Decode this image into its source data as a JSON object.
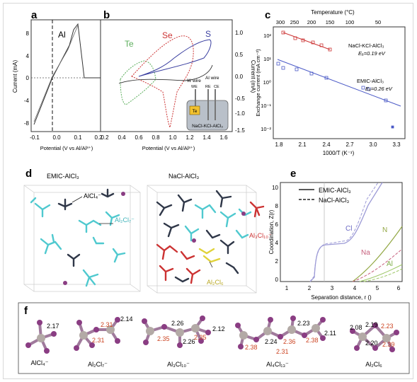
{
  "panels": {
    "a": {
      "letter": "a",
      "ylabel": "Current (mA)",
      "xlabel": "Potential (V vs Al/Al³⁺)",
      "element": "Al",
      "xticks": [
        "-0.1",
        "0.0",
        "0.1",
        "0.2"
      ],
      "yticks": [
        "8",
        "4",
        "0",
        "-4",
        "-8"
      ]
    },
    "b": {
      "letter": "b",
      "ylabel": "Current (mA)",
      "xlabel": "Potential (V vs Al/Al³⁺)",
      "elements": [
        "Te",
        "Se",
        "S"
      ],
      "xticks": [
        "0.2",
        "0.4",
        "0.6",
        "0.8",
        "1.0",
        "1.2",
        "1.4",
        "1.6"
      ],
      "yticks": [
        "1.0",
        "0.5",
        "0.0",
        "-0.5",
        "-1.0",
        "-1.5"
      ],
      "inset": {
        "w_wire": "W wire",
        "we": "WE",
        "al_wire": "Al wire",
        "re": "RE",
        "ce": "CE",
        "label": "NaCl-KCl-AlCl₃",
        "cell": "Te"
      }
    },
    "c": {
      "letter": "c",
      "top_label": "Temperature (°C)",
      "top_ticks": [
        "300",
        "250",
        "200",
        "150",
        "100",
        "50"
      ],
      "ylabel": "Exchange current (mA cm⁻²)",
      "xlabel": "1000/T (K⁻¹)",
      "xticks": [
        "1.8",
        "2.1",
        "2.4",
        "2.7",
        "3.0",
        "3.3"
      ],
      "yticks": [
        "10²",
        "10¹",
        "10⁰",
        "10⁻¹",
        "10⁻²"
      ],
      "series1_label": "NaCl-KCl-AlCl₃",
      "series1_ea": "Eₐ=0.19 eV",
      "series2_label": "EMIC-AlCl₃",
      "series2_ea": "Eₐ=0.26 eV"
    },
    "d": {
      "letter": "d",
      "left_label": "EMIC-AlCl₃",
      "right_label": "NaCl-AlCl₃",
      "alcl4": "AlCl₄⁻",
      "al2cl7": "Al₂Cl₇⁻",
      "al3cl10": "Al₃Cl₁₀⁻",
      "al2cl6": "Al₂Cl₆"
    },
    "e": {
      "letter": "e",
      "legend1": "EMIC-AlCl₃",
      "legend2": "NaCl-AlCl₃",
      "ylabel": "Coordination, Z(r)",
      "xlabel": "Separation distance, r ()",
      "xticks": [
        "1",
        "2",
        "3",
        "4",
        "5",
        "6"
      ],
      "yticks": [
        "10",
        "8",
        "6",
        "4",
        "2",
        "0"
      ],
      "cl": "Cl",
      "n": "N",
      "na": "Na",
      "al": "Al"
    },
    "f": {
      "letter": "f",
      "structures": [
        {
          "name": "AlCl₄⁻",
          "labels": [
            "2.17"
          ]
        },
        {
          "name": "Al₂Cl₇⁻",
          "labels": [
            "2.31",
            "2.14",
            "2.31"
          ]
        },
        {
          "name": "Al₃Cl₁₀⁻",
          "labels": [
            "2.26",
            "2.35",
            "2.26",
            "2.35",
            "2.12"
          ]
        },
        {
          "name": "Al₄Cl₁₃⁻",
          "labels": [
            "2.24",
            "2.23",
            "2.36",
            "2.38",
            "2.31",
            "2.38",
            "2.11"
          ]
        },
        {
          "name": "Al₂Cl₆",
          "labels": [
            "2.08",
            "2.19",
            "2.23",
            "2.20",
            "2.39"
          ]
        }
      ]
    }
  },
  "colors": {
    "cyan": "#4fc9cf",
    "navy": "#2f3748",
    "red": "#cc3333",
    "yellow": "#e0d23a",
    "purple": "#8a3d83",
    "green": "#5cae5c",
    "blue": "#4a59c6",
    "lav": "#9c9ad6",
    "olive": "#93a845",
    "rose": "#c65f7c"
  }
}
